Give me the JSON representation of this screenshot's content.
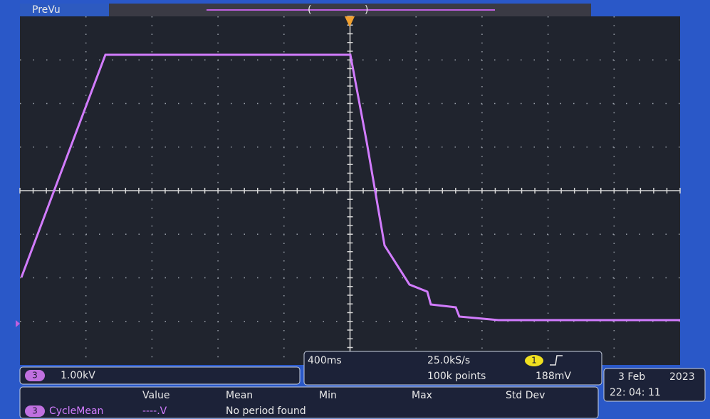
{
  "header": {
    "mode": "PreVu"
  },
  "channel": {
    "number": "3",
    "scale": "1.00kV"
  },
  "acquisition": {
    "timebase": "400ms",
    "sample_rate": "25.0kS/s",
    "record_length": "100k points",
    "trigger_channel": "1",
    "trigger_level": "188mV"
  },
  "datetime": {
    "date": "3 Feb",
    "year": "2023",
    "time": "22: 04: 11"
  },
  "measurements": {
    "headers": [
      "Value",
      "Mean",
      "Min",
      "Max",
      "Std Dev"
    ],
    "rows": [
      {
        "channel": "3",
        "name": "CycleMean",
        "value": "----.V",
        "mean": "No period found"
      }
    ]
  }
}
